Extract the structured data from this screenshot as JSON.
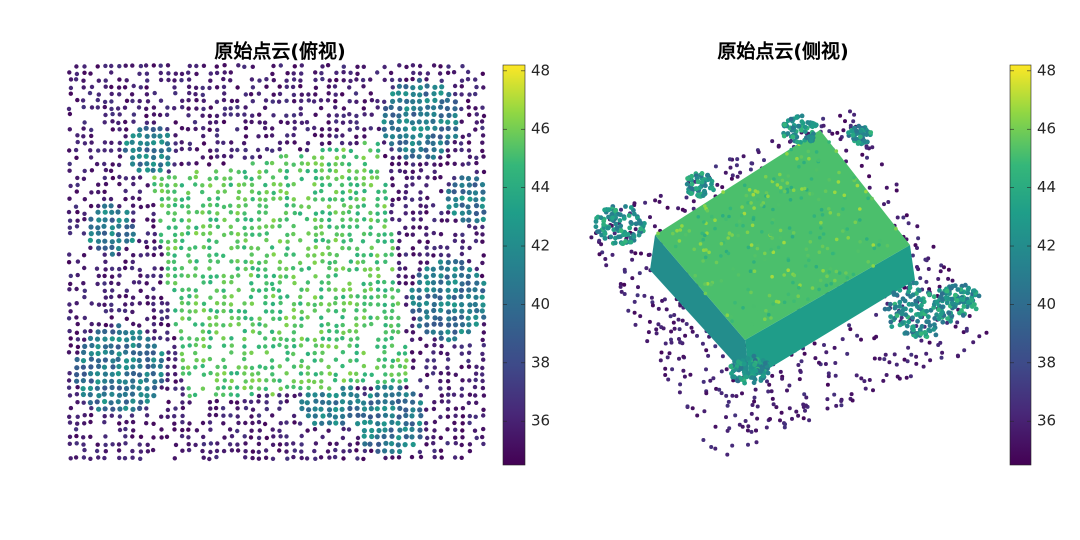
{
  "panels": [
    {
      "title": "原始点云(俯视)",
      "colorbar": {
        "lim": [
          34.5,
          48.2
        ],
        "ticks": [
          36,
          38,
          40,
          42,
          44,
          46,
          48
        ]
      }
    },
    {
      "title": "原始点云(侧视)",
      "colorbar": {
        "lim": [
          34.5,
          48.2
        ],
        "ticks": [
          36,
          38,
          40,
          42,
          44,
          46,
          48
        ]
      }
    }
  ]
}
